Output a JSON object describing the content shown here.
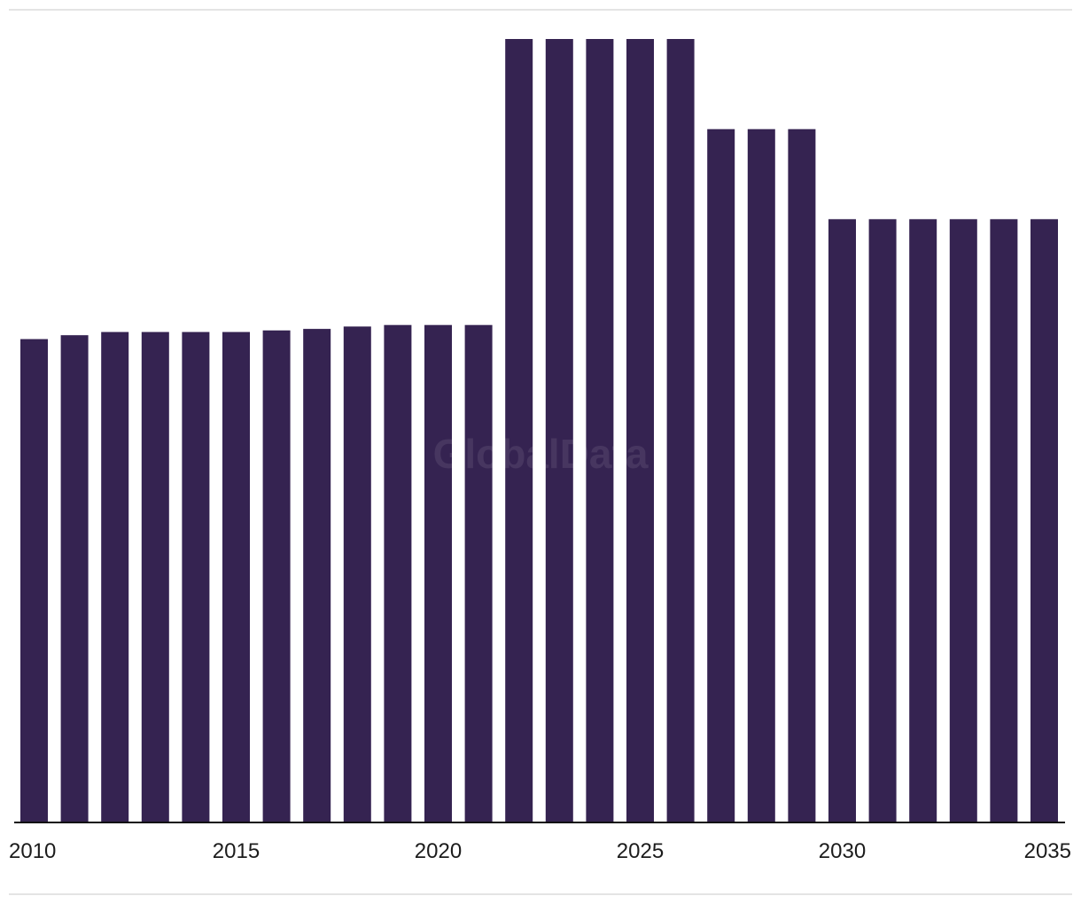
{
  "watermark": "GlobalData",
  "colors": {
    "bar": "#352351",
    "axis": "#111111",
    "rule": "#e4e4e4",
    "text": "#1c1c1c"
  },
  "chart_data": {
    "type": "bar",
    "title": "",
    "xlabel": "",
    "ylabel": "",
    "ylim": [
      0,
      100
    ],
    "grid": false,
    "legend": "none",
    "categories": [
      "2010",
      "2011",
      "2012",
      "2013",
      "2014",
      "2015",
      "2016",
      "2017",
      "2018",
      "2019",
      "2020",
      "2021",
      "2022",
      "2023",
      "2024",
      "2025",
      "2026",
      "2027",
      "2028",
      "2029",
      "2030",
      "2031",
      "2032",
      "2033",
      "2034",
      "2035"
    ],
    "values": [
      61.7,
      62.2,
      62.6,
      62.6,
      62.6,
      62.6,
      62.8,
      63.0,
      63.3,
      63.5,
      63.5,
      63.5,
      100,
      100,
      100,
      100,
      100,
      88.5,
      88.5,
      88.5,
      77.0,
      77.0,
      77.0,
      77.0,
      77.0,
      77.0
    ],
    "tick_labels": [
      "2010",
      "2015",
      "2020",
      "2025",
      "2030",
      "2035"
    ]
  }
}
